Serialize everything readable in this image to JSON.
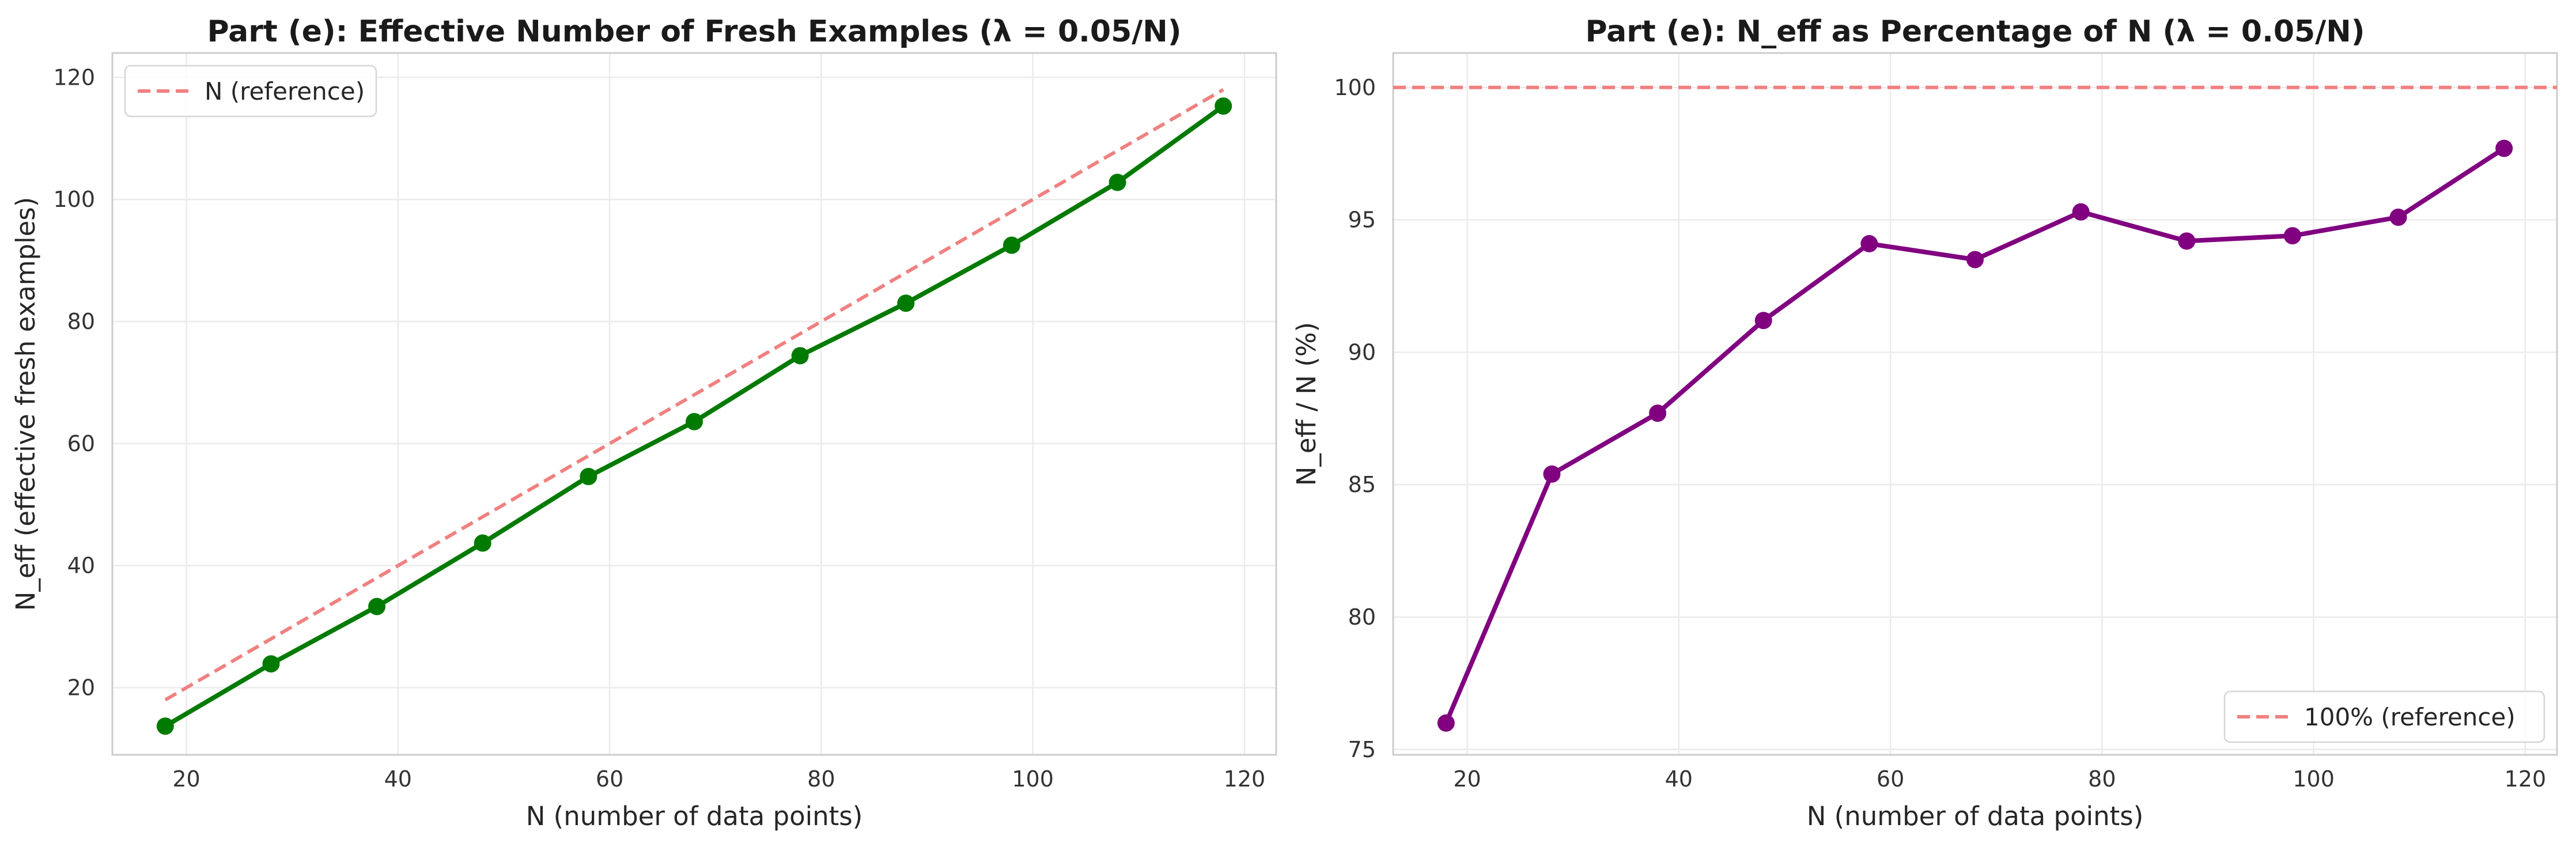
{
  "chart_data": [
    {
      "type": "line",
      "title": "Part (e): Effective Number of Fresh Examples (λ = 0.05/N)",
      "xlabel": "N (number of data points)",
      "ylabel": "N_eff (effective fresh examples)",
      "xlim": [
        13,
        123
      ],
      "ylim": [
        9,
        124
      ],
      "xticks": [
        20,
        40,
        60,
        80,
        100,
        120
      ],
      "yticks": [
        20,
        40,
        60,
        80,
        100,
        120
      ],
      "grid": true,
      "legend": {
        "position": "top-left",
        "entries": [
          "N (reference)"
        ]
      },
      "series": [
        {
          "key": "n-eff",
          "x": [
            18,
            28,
            38,
            48,
            58,
            68,
            78,
            88,
            98,
            108,
            118
          ],
          "values": [
            13.7,
            23.9,
            33.3,
            43.7,
            54.6,
            63.6,
            74.4,
            83.0,
            92.5,
            102.8,
            115.3
          ],
          "color": "#007a00",
          "style": "solid",
          "markers": true
        },
        {
          "key": "n-reference",
          "name": "N (reference)",
          "x": [
            18,
            118
          ],
          "values": [
            18,
            118
          ],
          "color": "#f08080",
          "style": "dashed",
          "markers": false
        }
      ]
    },
    {
      "type": "line",
      "title": "Part (e): N_eff as Percentage of N (λ = 0.05/N)",
      "xlabel": "N (number of data points)",
      "ylabel": "N_eff / N (%)",
      "xlim": [
        13,
        123
      ],
      "ylim": [
        74.8,
        101.3
      ],
      "xticks": [
        20,
        40,
        60,
        80,
        100,
        120
      ],
      "yticks": [
        75,
        80,
        85,
        90,
        95,
        100
      ],
      "grid": true,
      "legend": {
        "position": "bottom-right",
        "entries": [
          "100% (reference)"
        ]
      },
      "series": [
        {
          "key": "percent",
          "x": [
            18,
            28,
            38,
            48,
            58,
            68,
            78,
            88,
            98,
            108,
            118
          ],
          "values": [
            76.0,
            85.4,
            87.7,
            91.2,
            94.1,
            93.5,
            95.3,
            94.2,
            94.4,
            95.1,
            97.7
          ],
          "color": "#800080",
          "style": "solid",
          "markers": true
        },
        {
          "key": "reference-100",
          "name": "100% (reference)",
          "hline": 100,
          "color": "#f08080",
          "style": "dashed",
          "markers": false
        }
      ]
    }
  ]
}
